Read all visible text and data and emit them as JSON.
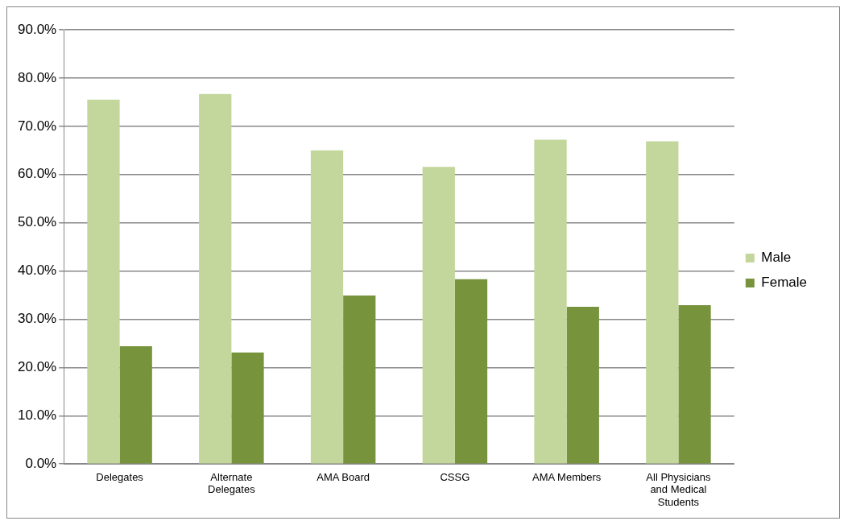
{
  "chart_data": {
    "type": "bar",
    "categories": [
      "Delegates",
      "Alternate Delegates",
      "AMA Board",
      "CSSG",
      "AMA Members",
      "All Physicians and Medical Students"
    ],
    "series": [
      {
        "name": "Male",
        "color": "#c3d69b",
        "values": [
          75.5,
          76.7,
          65.0,
          61.6,
          67.2,
          66.9
        ]
      },
      {
        "name": "Female",
        "color": "#77933c",
        "values": [
          24.4,
          23.1,
          34.9,
          38.3,
          32.6,
          32.9
        ]
      }
    ],
    "ylim": [
      0,
      90
    ],
    "yticks": [
      {
        "value": 0,
        "label": "0.0%"
      },
      {
        "value": 10,
        "label": "10.0%"
      },
      {
        "value": 20,
        "label": "20.0%"
      },
      {
        "value": 30,
        "label": "30.0%"
      },
      {
        "value": 40,
        "label": "40.0%"
      },
      {
        "value": 50,
        "label": "50.0%"
      },
      {
        "value": 60,
        "label": "60.0%"
      },
      {
        "value": 70,
        "label": "70.0%"
      },
      {
        "value": 80,
        "label": "80.0%"
      },
      {
        "value": 90,
        "label": "90.0%"
      }
    ],
    "grid": "y",
    "legend": "right"
  }
}
